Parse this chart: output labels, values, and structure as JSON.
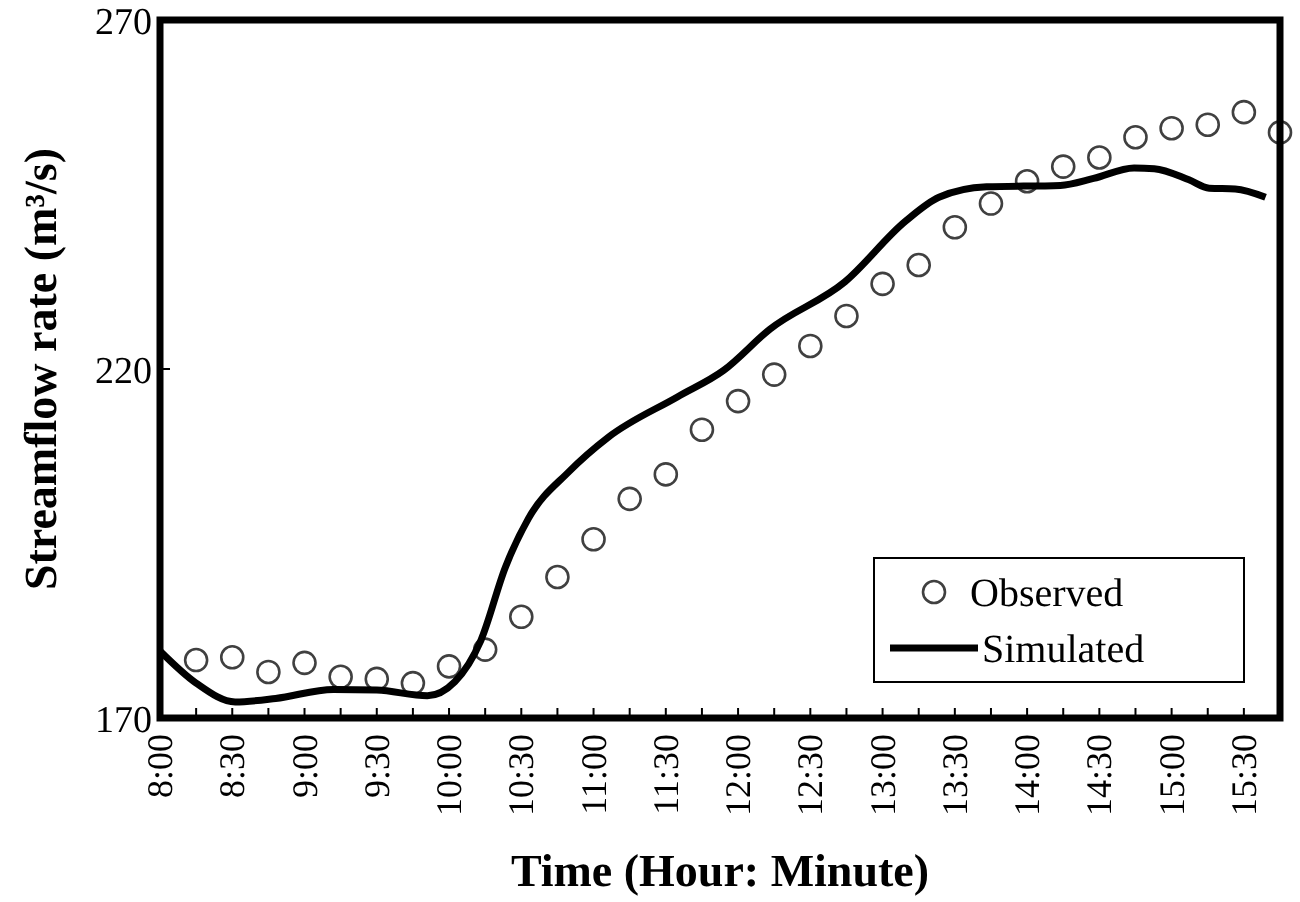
{
  "chart_data": {
    "type": "line",
    "xlabel": "Time (Hour: Minute)",
    "ylabel": "Streamflow rate (m³/s)",
    "xlim": [
      8,
      15.75
    ],
    "ylim": [
      170,
      270
    ],
    "yticks": [
      170,
      220,
      270
    ],
    "xticks": [
      {
        "value": 8,
        "label": "8:00"
      },
      {
        "value": 8.25,
        "label": null
      },
      {
        "value": 8.5,
        "label": "8:30"
      },
      {
        "value": 8.75,
        "label": null
      },
      {
        "value": 9,
        "label": "9:00"
      },
      {
        "value": 9.25,
        "label": null
      },
      {
        "value": 9.5,
        "label": "9:30"
      },
      {
        "value": 9.75,
        "label": null
      },
      {
        "value": 10,
        "label": "10:00"
      },
      {
        "value": 10.25,
        "label": null
      },
      {
        "value": 10.5,
        "label": "10:30"
      },
      {
        "value": 10.75,
        "label": null
      },
      {
        "value": 11,
        "label": "11:00"
      },
      {
        "value": 11.25,
        "label": null
      },
      {
        "value": 11.5,
        "label": "11:30"
      },
      {
        "value": 11.75,
        "label": null
      },
      {
        "value": 12,
        "label": "12:00"
      },
      {
        "value": 12.25,
        "label": null
      },
      {
        "value": 12.5,
        "label": "12:30"
      },
      {
        "value": 12.75,
        "label": null
      },
      {
        "value": 13,
        "label": "13:00"
      },
      {
        "value": 13.25,
        "label": null
      },
      {
        "value": 13.5,
        "label": "13:30"
      },
      {
        "value": 13.75,
        "label": null
      },
      {
        "value": 14,
        "label": "14:00"
      },
      {
        "value": 14.25,
        "label": null
      },
      {
        "value": 14.5,
        "label": "14:30"
      },
      {
        "value": 14.75,
        "label": null
      },
      {
        "value": 15,
        "label": "15:00"
      },
      {
        "value": 15.25,
        "label": null
      },
      {
        "value": 15.5,
        "label": "15:30"
      }
    ],
    "legend": "bottom right",
    "grid": false,
    "series": [
      {
        "name": "Observed",
        "type": "scatter",
        "marker": "circle",
        "color": "#404040",
        "x": [
          8.25,
          8.5,
          8.75,
          9,
          9.25,
          9.5,
          9.75,
          10,
          10.25,
          10.5,
          10.75,
          11,
          11.25,
          11.5,
          11.75,
          12,
          12.25,
          12.5,
          12.75,
          13,
          13.25,
          13.5,
          13.75,
          14,
          14.25,
          14.5,
          14.75,
          15,
          15.25,
          15.5,
          15.75
        ],
        "values": [
          178.3,
          178.7,
          176.6,
          177.9,
          175.9,
          175.6,
          175,
          177.4,
          179.8,
          184.5,
          190.2,
          195.6,
          201.4,
          204.9,
          211.3,
          215.4,
          219.2,
          223.3,
          227.6,
          232.2,
          234.9,
          240.3,
          243.7,
          246.9,
          249,
          250.3,
          253.2,
          254.5,
          255,
          256.8,
          253.9
        ]
      },
      {
        "name": "Simulated",
        "marker": "none",
        "line_style": "solid",
        "color": "#000000",
        "x": [
          8,
          8.25,
          8.52,
          8.8,
          9.2,
          9.5,
          9.85,
          10.04,
          10.22,
          10.39,
          10.55,
          10.83,
          11.1,
          11.58,
          11.9,
          12.22,
          12.74,
          13.16,
          13.39,
          13.72,
          14.23,
          14.46,
          14.74,
          14.88,
          15.12,
          15.26,
          15.44,
          15.65
        ],
        "values": [
          179.6,
          175,
          172.3,
          172.8,
          174.1,
          174,
          173.2,
          175.2,
          181.1,
          191.6,
          198.6,
          205.3,
          210.2,
          216,
          219.8,
          225.7,
          232.5,
          241.2,
          244.6,
          246.1,
          246.3,
          247.3,
          248.8,
          248.7,
          247.1,
          245.9,
          245.8,
          244.6
        ]
      }
    ]
  }
}
